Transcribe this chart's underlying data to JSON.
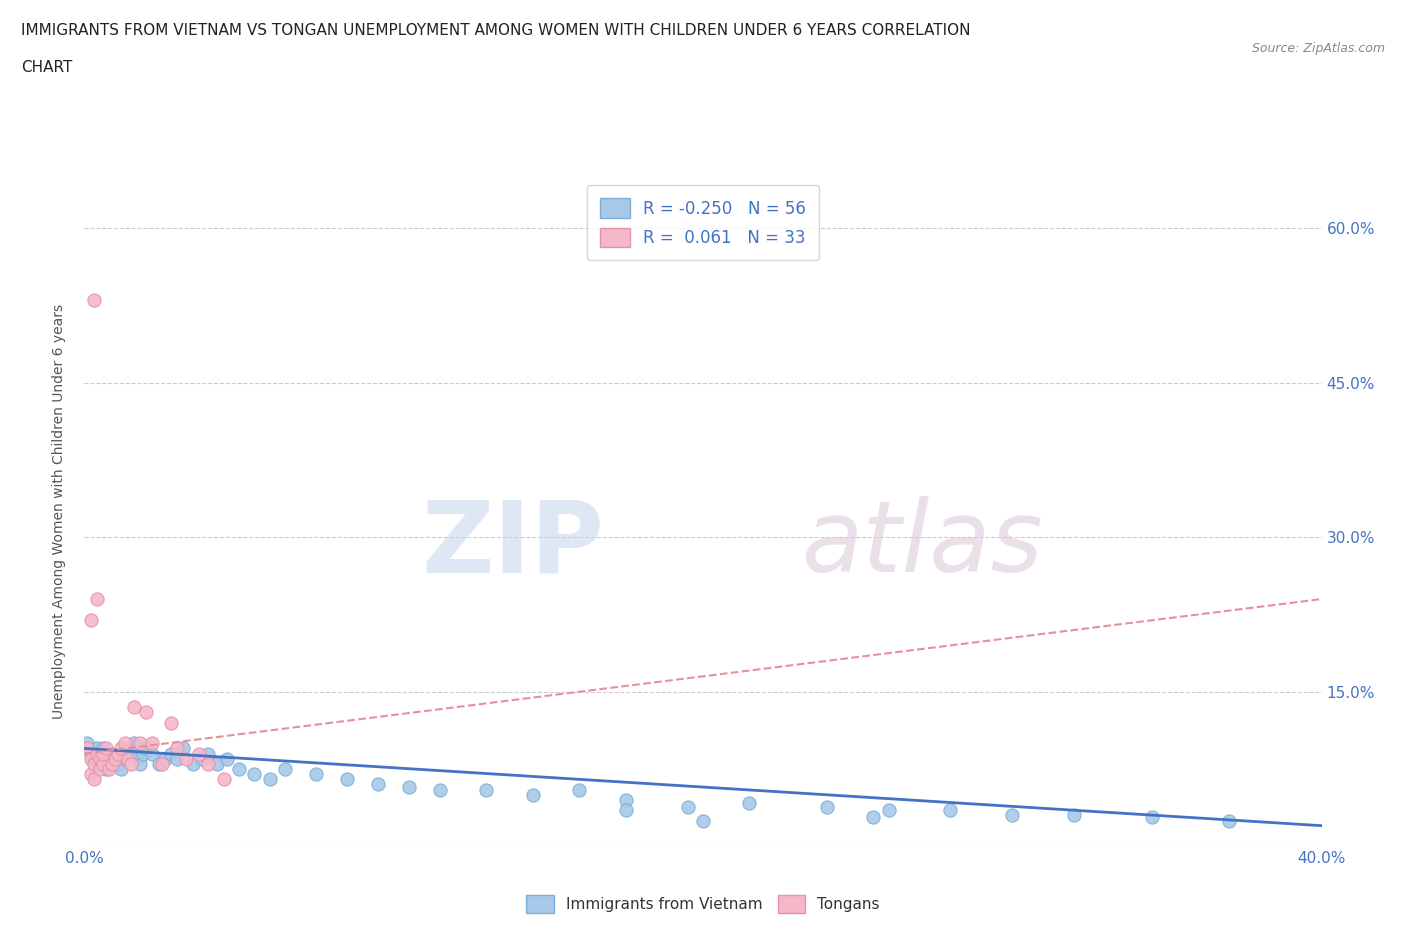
{
  "title_line1": "IMMIGRANTS FROM VIETNAM VS TONGAN UNEMPLOYMENT AMONG WOMEN WITH CHILDREN UNDER 6 YEARS CORRELATION",
  "title_line2": "CHART",
  "source_text": "Source: ZipAtlas.com",
  "ylabel": "Unemployment Among Women with Children Under 6 years",
  "xlim": [
    0.0,
    0.4
  ],
  "ylim": [
    0.0,
    0.65
  ],
  "xticks": [
    0.0,
    0.05,
    0.1,
    0.15,
    0.2,
    0.25,
    0.3,
    0.35,
    0.4
  ],
  "xtick_labels": [
    "0.0%",
    "",
    "",
    "",
    "",
    "",
    "",
    "",
    "40.0%"
  ],
  "yticks": [
    0.0,
    0.15,
    0.3,
    0.45,
    0.6
  ],
  "ytick_labels": [
    "",
    "15.0%",
    "30.0%",
    "45.0%",
    "60.0%"
  ],
  "watermark_zip": "ZIP",
  "watermark_atlas": "atlas",
  "color_vietnam": "#a8c8e8",
  "color_tonga": "#f4b8c8",
  "color_vietnam_edge": "#7ab0d8",
  "color_tonga_edge": "#e890aa",
  "color_vietnam_line": "#4472c4",
  "color_tonga_line": "#e8909a",
  "color_axis_label": "#4472c4",
  "background_color": "#ffffff",
  "vietnam_x": [
    0.001,
    0.002,
    0.003,
    0.004,
    0.005,
    0.006,
    0.007,
    0.008,
    0.009,
    0.01,
    0.011,
    0.012,
    0.013,
    0.014,
    0.015,
    0.016,
    0.017,
    0.018,
    0.019,
    0.02,
    0.022,
    0.024,
    0.026,
    0.028,
    0.03,
    0.032,
    0.035,
    0.038,
    0.04,
    0.043,
    0.046,
    0.05,
    0.055,
    0.06,
    0.065,
    0.075,
    0.085,
    0.095,
    0.105,
    0.115,
    0.13,
    0.145,
    0.16,
    0.175,
    0.195,
    0.215,
    0.24,
    0.26,
    0.28,
    0.3,
    0.32,
    0.345,
    0.37,
    0.255,
    0.175,
    0.2
  ],
  "vietnam_y": [
    0.1,
    0.09,
    0.085,
    0.095,
    0.08,
    0.095,
    0.075,
    0.08,
    0.09,
    0.085,
    0.08,
    0.075,
    0.085,
    0.09,
    0.095,
    0.1,
    0.085,
    0.08,
    0.09,
    0.095,
    0.09,
    0.08,
    0.085,
    0.09,
    0.085,
    0.095,
    0.08,
    0.085,
    0.09,
    0.08,
    0.085,
    0.075,
    0.07,
    0.065,
    0.075,
    0.07,
    0.065,
    0.06,
    0.058,
    0.055,
    0.055,
    0.05,
    0.055,
    0.045,
    0.038,
    0.042,
    0.038,
    0.035,
    0.035,
    0.03,
    0.03,
    0.028,
    0.025,
    0.028,
    0.035,
    0.025
  ],
  "tonga_x": [
    0.001,
    0.002,
    0.002,
    0.003,
    0.003,
    0.004,
    0.005,
    0.005,
    0.006,
    0.006,
    0.007,
    0.008,
    0.009,
    0.01,
    0.011,
    0.012,
    0.013,
    0.014,
    0.015,
    0.016,
    0.018,
    0.02,
    0.022,
    0.025,
    0.028,
    0.03,
    0.033,
    0.037,
    0.04,
    0.045,
    0.003,
    0.004,
    0.002
  ],
  "tonga_y": [
    0.095,
    0.085,
    0.07,
    0.08,
    0.065,
    0.09,
    0.075,
    0.085,
    0.08,
    0.09,
    0.095,
    0.075,
    0.08,
    0.085,
    0.09,
    0.095,
    0.1,
    0.085,
    0.08,
    0.135,
    0.1,
    0.13,
    0.1,
    0.08,
    0.12,
    0.095,
    0.085,
    0.09,
    0.08,
    0.065,
    0.53,
    0.24,
    0.22
  ],
  "tonga_line_x0": 0.0,
  "tonga_line_x1": 0.4,
  "tonga_line_y0": 0.09,
  "tonga_line_y1": 0.24,
  "vietnam_line_x0": 0.0,
  "vietnam_line_x1": 0.4,
  "vietnam_line_y0": 0.095,
  "vietnam_line_y1": 0.02
}
